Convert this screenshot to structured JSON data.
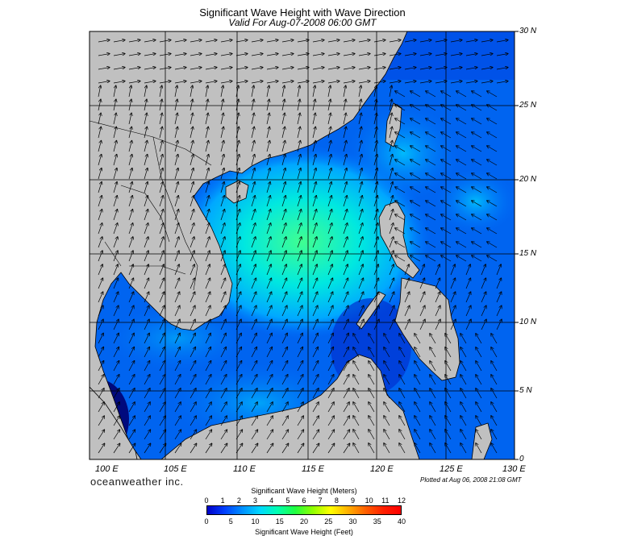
{
  "header": {
    "title": "Significant Wave Height with Wave Direction",
    "subtitle": "Valid For Aug-07-2008 06:00 GMT"
  },
  "map": {
    "lat_labels": [
      "30 N",
      "25 N",
      "20 N",
      "15 N",
      "10 N",
      "5 N",
      "0"
    ],
    "lon_labels": [
      "100 E",
      "105 E",
      "110 E",
      "115 E",
      "120 E",
      "125 E",
      "130 E"
    ],
    "land_color": "#c0c0c0",
    "deep_blue": "#0000c8",
    "mid_blue": "#0078ff",
    "light_blue": "#00e0ff",
    "sea_green": "#40ff80"
  },
  "footer": {
    "brand": "oceanweather inc.",
    "plotted": "Plotted at Aug 06, 2008 21:08 GMT"
  },
  "legend": {
    "meters_title": "Significant Wave Height (Meters)",
    "feet_title": "Significant Wave Height (Feet)",
    "meters_ticks": [
      "0",
      "1",
      "2",
      "3",
      "4",
      "5",
      "6",
      "7",
      "8",
      "9",
      "10",
      "11",
      "12"
    ],
    "feet_ticks": [
      "0",
      "5",
      "10",
      "15",
      "20",
      "25",
      "30",
      "35",
      "40"
    ],
    "colors": [
      "#0000c8",
      "#0040ff",
      "#0090ff",
      "#00d8ff",
      "#00ffb0",
      "#20ff40",
      "#90ff00",
      "#ffff00",
      "#ffb000",
      "#ff6000",
      "#ff2000",
      "#ff0000"
    ]
  }
}
